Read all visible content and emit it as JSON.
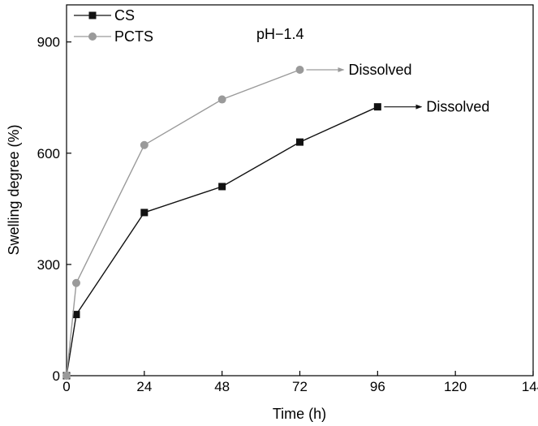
{
  "chart_data": {
    "type": "line",
    "annotation": "pH−1.4",
    "xlabel": "Time (h)",
    "ylabel": "Swelling degree (%)",
    "xlim": [
      0,
      144
    ],
    "ylim": [
      0,
      1000
    ],
    "xticks": [
      0,
      24,
      48,
      72,
      96,
      120,
      144
    ],
    "yticks": [
      0,
      300,
      600,
      900
    ],
    "grid": false,
    "legend_position": "top-left",
    "series": [
      {
        "name": "CS",
        "marker": "square",
        "color": "#111111",
        "x": [
          0,
          3,
          24,
          48,
          72,
          96
        ],
        "y": [
          0,
          165,
          440,
          510,
          630,
          725
        ],
        "end_label": "Dissolved"
      },
      {
        "name": "PCTS",
        "marker": "circle",
        "color": "#9a9a9a",
        "x": [
          0,
          3,
          24,
          48,
          72
        ],
        "y": [
          0,
          250,
          622,
          745,
          825
        ],
        "end_label": "Dissolved"
      }
    ]
  }
}
